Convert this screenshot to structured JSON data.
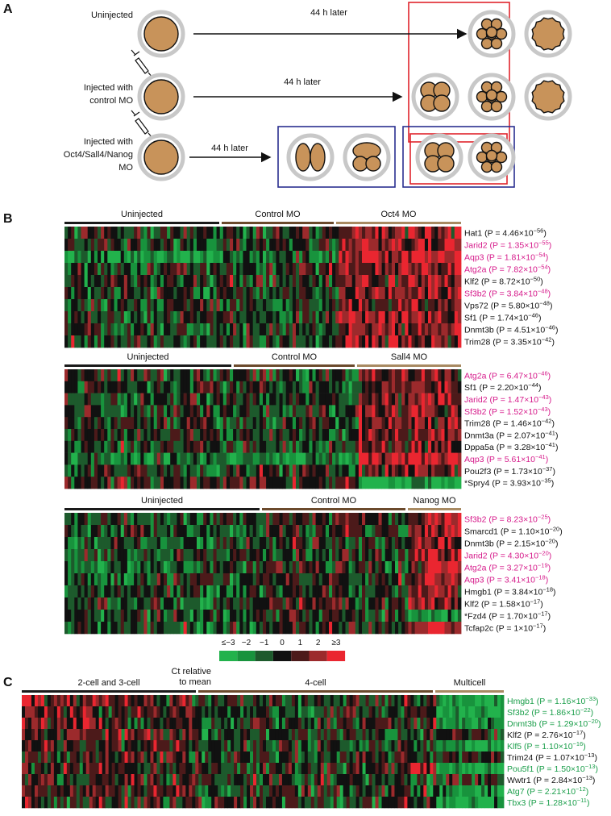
{
  "panel_a": {
    "label": "A",
    "rows": [
      {
        "label_lines": [
          "Uninjected"
        ],
        "arrow_label": "44 h later"
      },
      {
        "label_lines": [
          "Injected with",
          "control MO"
        ],
        "arrow_label": "44 h later"
      },
      {
        "label_lines": [
          "Injected with",
          "Oct4/Sall4/Nanog",
          "MO"
        ],
        "arrow_label": "44 h later"
      }
    ]
  },
  "panel_b": {
    "label": "B",
    "heatmaps": [
      {
        "groups": [
          "Uninjected",
          "Control MO",
          "Oct4 MO"
        ],
        "genes": [
          {
            "text": "Hat1 (P = 4.46×10",
            "sup": "−56",
            "end": ")",
            "color": "#111111"
          },
          {
            "text": "Jarid2 (P = 1.35×10",
            "sup": "−55",
            "end": ")",
            "color": "#d6198a"
          },
          {
            "text": "Aqp3 (P = 1.81×10",
            "sup": "−54",
            "end": ")",
            "color": "#d6198a"
          },
          {
            "text": "Atg2a (P = 7.82×10",
            "sup": "−54",
            "end": ")",
            "color": "#d6198a"
          },
          {
            "text": "Klf2 (P = 8.72×10",
            "sup": "−50",
            "end": ")",
            "color": "#111111"
          },
          {
            "text": "Sf3b2 (P = 3.84×10",
            "sup": "−48",
            "end": ")",
            "color": "#d6198a"
          },
          {
            "text": "Vps72 (P = 5.80×10",
            "sup": "−48",
            "end": ")",
            "color": "#111111"
          },
          {
            "text": "Sf1 (P = 1.74×10",
            "sup": "−46",
            "end": ")",
            "color": "#111111"
          },
          {
            "text": "Dnmt3b (P = 4.51×10",
            "sup": "−46",
            "end": ")",
            "color": "#111111"
          },
          {
            "text": "Trim28 (P = 3.35×10",
            "sup": "−42",
            "end": ")",
            "color": "#111111"
          }
        ]
      },
      {
        "groups": [
          "Uninjected",
          "Control MO",
          "Sall4 MO"
        ],
        "genes": [
          {
            "text": "Atg2a (P = 6.47×10",
            "sup": "−46",
            "end": ")",
            "color": "#d6198a"
          },
          {
            "text": "Sf1 (P = 2.20×10",
            "sup": "−44",
            "end": ")",
            "color": "#111111"
          },
          {
            "text": "Jarid2 (P = 1.47×10",
            "sup": "−43",
            "end": ")",
            "color": "#d6198a"
          },
          {
            "text": "Sf3b2 (P = 1.52×10",
            "sup": "−43",
            "end": ")",
            "color": "#d6198a"
          },
          {
            "text": "Trim28 (P = 1.46×10",
            "sup": "−42",
            "end": ")",
            "color": "#111111"
          },
          {
            "text": "Dnmt3a (P = 2.07×10",
            "sup": "−41",
            "end": ")",
            "color": "#111111"
          },
          {
            "text": "Dppa5a (P = 3.28×10",
            "sup": "−41",
            "end": ")",
            "color": "#111111"
          },
          {
            "text": "Aqp3 (P = 5.61×10",
            "sup": "−41",
            "end": ")",
            "color": "#d6198a"
          },
          {
            "text": "Pou2f3 (P = 1.73×10",
            "sup": "−37",
            "end": ")",
            "color": "#111111"
          },
          {
            "text": "*Spry4 (P = 3.93×10",
            "sup": "−35",
            "end": ")",
            "color": "#111111"
          }
        ]
      },
      {
        "groups": [
          "Uninjected",
          "Control MO",
          "Nanog MO"
        ],
        "genes": [
          {
            "text": "Sf3b2 (P = 8.23×10",
            "sup": "−25",
            "end": ")",
            "color": "#d6198a"
          },
          {
            "text": "Smarcd1 (P = 1.10×10",
            "sup": "−20",
            "end": ")",
            "color": "#111111"
          },
          {
            "text": "Dnmt3b (P = 2.15×10",
            "sup": "−20",
            "end": ")",
            "color": "#111111"
          },
          {
            "text": "Jarid2 (P = 4.30×10",
            "sup": "−20",
            "end": ")",
            "color": "#d6198a"
          },
          {
            "text": "Atg2a (P = 3.27×10",
            "sup": "−19",
            "end": ")",
            "color": "#d6198a"
          },
          {
            "text": "Aqp3 (P = 3.41×10",
            "sup": "−18",
            "end": ")",
            "color": "#d6198a"
          },
          {
            "text": "Hmgb1 (P = 3.84×10",
            "sup": "−18",
            "end": ")",
            "color": "#111111"
          },
          {
            "text": "Klf2 (P = 1.58×10",
            "sup": "−17",
            "end": ")",
            "color": "#111111"
          },
          {
            "text": "*Fzd4 (P = 1.70×10",
            "sup": "−17",
            "end": ")",
            "color": "#111111"
          },
          {
            "text": "Tcfap2c (P = 1×10",
            "sup": "−17",
            "end": ")",
            "color": "#111111"
          }
        ]
      }
    ],
    "legend": {
      "ticks": [
        "≤−3",
        "−2",
        "−1",
        "0",
        "1",
        "2",
        "≥3"
      ],
      "colors": [
        "#22b24c",
        "#18933d",
        "#1d5a2c",
        "#111111",
        "#4c1a1a",
        "#9c2a2c",
        "#ea2630"
      ],
      "title_lines": [
        "Ct relative",
        "to mean"
      ]
    }
  },
  "panel_c": {
    "label": "C",
    "groups": [
      "2-cell and 3-cell",
      "4-cell",
      "Multicell"
    ],
    "genes": [
      {
        "text": "Hmgb1 (P = 1.16×10",
        "sup": "−33",
        "end": ")",
        "color": "#1a9e4a"
      },
      {
        "text": "Sf3b2 (P = 1.86×10",
        "sup": "−22",
        "end": ")",
        "color": "#1a9e4a"
      },
      {
        "text": "Dnmt3b (P = 1.29×10",
        "sup": "−20",
        "end": ")",
        "color": "#1a9e4a"
      },
      {
        "text": "Klf2 (P = 2.76×10",
        "sup": "−17",
        "end": ")",
        "color": "#111111"
      },
      {
        "text": "Klf5 (P = 1.10×10",
        "sup": "−16",
        "end": ")",
        "color": "#1a9e4a"
      },
      {
        "text": "Trim24 (P = 1.07×10",
        "sup": "−13",
        "end": ")",
        "color": "#111111"
      },
      {
        "text": "Pou5f1 (P = 1.50×10",
        "sup": "−13",
        "end": ")",
        "color": "#1a9e4a"
      },
      {
        "text": "Wwtr1 (P = 2.84×10",
        "sup": "−13",
        "end": ")",
        "color": "#111111"
      },
      {
        "text": "Atg7 (P = 2.21×10",
        "sup": "−12",
        "end": ")",
        "color": "#1a9e4a"
      },
      {
        "text": "Tbx3 (P = 1.28×10",
        "sup": "−11",
        "end": ")",
        "color": "#1a9e4a"
      }
    ]
  }
}
